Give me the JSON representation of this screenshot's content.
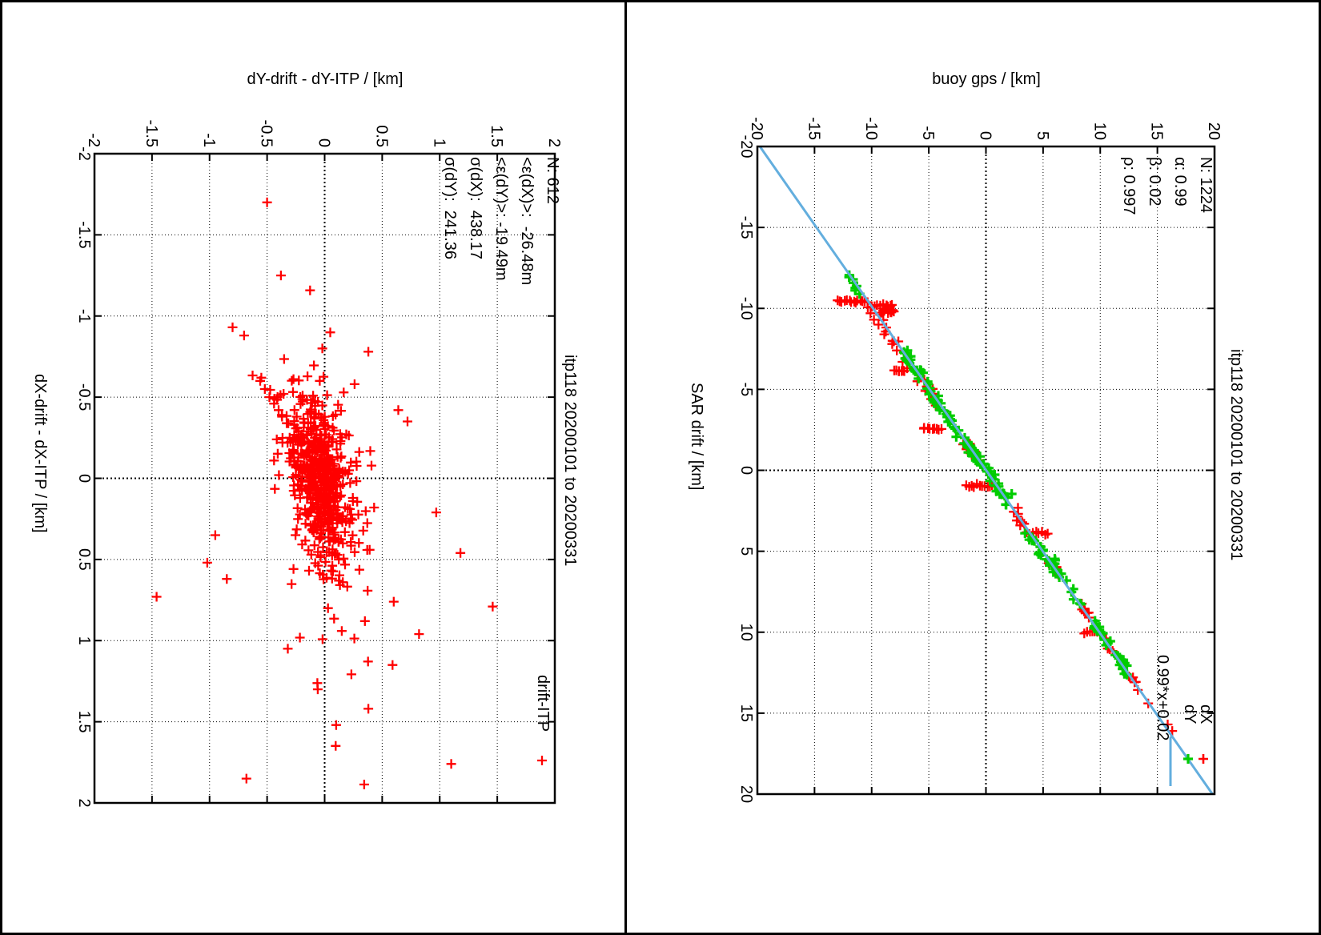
{
  "panels": {
    "left": {
      "title": "itp118 20200101 to 20200331",
      "axis_top_label": "dY-drift - dY-ITP / [km]",
      "axis_side_label": "dX-drift - dX-ITP / [km]",
      "stats_lines": [
        "N: 612",
        "<ε(dX)>:  -26.48m",
        "<ε(dY)>: -19.49m",
        "σ(dX):  438.17",
        "σ(dY):  241.36"
      ],
      "legend": {
        "label": "drift-ITP"
      }
    },
    "right": {
      "title": "itp118 20200101 to 20200331",
      "axis_top_label": "buoy gps / [km]",
      "axis_side_label": "SAR drift / [km]",
      "stats_lines": [
        "N: 1224",
        "α: 0.99",
        "β: 0.02",
        "ρ: 0.997"
      ],
      "legend": {
        "dx_label": "dX",
        "dy_label": "dY",
        "fit_label": "0.99*x+0.02"
      }
    }
  },
  "colors": {
    "marker_red": "#ff0000",
    "marker_green": "#00cc00",
    "fit_line": "#63aede",
    "grid": "#000000",
    "frame": "#000000",
    "background": "#ffffff"
  },
  "chart_data": [
    {
      "type": "scatter",
      "orientation": "rotated-90cw",
      "title": "itp118 20200101 to 20200331",
      "xlabel": "dX-drift - dX-ITP / [km]",
      "ylabel": "dY-drift - dY-ITP / [km]",
      "xlim": [
        -2,
        2
      ],
      "ylim": [
        -2,
        2
      ],
      "xticks": [
        -2,
        -1.5,
        -1,
        -0.5,
        0,
        0.5,
        1,
        1.5,
        2
      ],
      "yticks": [
        -2,
        -1.5,
        -1,
        -0.5,
        0,
        0.5,
        1,
        1.5,
        2
      ],
      "xtick_labels": [
        "-2",
        "-1.5",
        "-1",
        "-0.5",
        "0",
        "0.5",
        "1",
        "1.5",
        "2"
      ],
      "ytick_labels": [
        "-2",
        "-1.5",
        "-1",
        "-0.5",
        "0",
        "0.5",
        "1",
        "1.5",
        "2"
      ],
      "grid": true,
      "legend_position": "bottom-right",
      "stats": {
        "N": 612,
        "mean_eps_dX_m": -26.48,
        "mean_eps_dY_m": -19.49,
        "sigma_dX_m": 438.17,
        "sigma_dY_m": 241.36
      },
      "series": [
        {
          "name": "drift-ITP",
          "marker": "plus",
          "color": "#ff0000",
          "points": [
            [
              -1.7,
              -0.5
            ],
            [
              -1.25,
              -0.38
            ],
            [
              -0.93,
              -0.8
            ],
            [
              -0.88,
              -0.7
            ],
            [
              -0.8,
              -0.02
            ],
            [
              -0.78,
              0.38
            ],
            [
              -0.62,
              -0.55
            ],
            [
              -0.58,
              0.26
            ],
            [
              0.73,
              -1.46
            ],
            [
              0.52,
              -1.02
            ],
            [
              1.85,
              -0.68
            ],
            [
              1.76,
              1.1
            ],
            [
              1.52,
              0.1
            ],
            [
              1.15,
              0.59
            ],
            [
              0.96,
              0.82
            ],
            [
              0.79,
              1.46
            ],
            [
              0.46,
              1.18
            ],
            [
              0.21,
              0.97
            ],
            [
              1.3,
              -0.06
            ],
            [
              1.05,
              -0.32
            ],
            [
              0.62,
              -0.85
            ],
            [
              0.35,
              -0.95
            ],
            [
              -0.42,
              0.64
            ],
            [
              -0.35,
              0.72
            ],
            [
              0.88,
              0.35
            ],
            [
              1.42,
              0.38
            ],
            [
              -0.6,
              -0.56
            ],
            [
              -0.55,
              -0.52
            ],
            [
              -0.5,
              -0.48
            ],
            [
              -0.46,
              -0.44
            ],
            [
              -0.42,
              -0.4
            ],
            [
              -0.38,
              -0.37
            ],
            [
              -0.34,
              -0.33
            ]
          ],
          "clusters": [
            {
              "count": 400,
              "cx": 0.02,
              "cy": -0.03,
              "sx": 0.3,
              "sy": 0.16,
              "corr": 0.4
            },
            {
              "count": 120,
              "cx": 0.0,
              "cy": -0.04,
              "sx": 0.14,
              "sy": 0.09,
              "corr": 0.3
            },
            {
              "count": 80,
              "cx": 0.08,
              "cy": -0.02,
              "sx": 0.55,
              "sy": 0.28,
              "corr": 0.5
            }
          ]
        }
      ]
    },
    {
      "type": "scatter",
      "orientation": "rotated-90cw",
      "title": "itp118 20200101 to 20200331",
      "xlabel": "SAR drift / [km]",
      "ylabel": "buoy gps / [km]",
      "xlim": [
        -20,
        20
      ],
      "ylim": [
        -20,
        20
      ],
      "xticks": [
        -20,
        -15,
        -10,
        -5,
        0,
        5,
        10,
        15,
        20
      ],
      "yticks": [
        -20,
        -15,
        -10,
        -5,
        0,
        5,
        10,
        15,
        20
      ],
      "xtick_labels": [
        "-20",
        "-15",
        "-10",
        "-5",
        "0",
        "5",
        "10",
        "15",
        "20"
      ],
      "ytick_labels": [
        "-20",
        "-15",
        "-10",
        "-5",
        "0",
        "5",
        "10",
        "15",
        "20"
      ],
      "grid": true,
      "legend_position": "bottom-right",
      "stats": {
        "N": 1224,
        "alpha": 0.99,
        "beta": 0.02,
        "rho": 0.997
      },
      "fit": {
        "label": "0.99*x+0.02",
        "slope": 0.99,
        "intercept": 0.02,
        "color": "#63aede"
      },
      "series": [
        {
          "name": "dX",
          "marker": "plus",
          "color": "#ff0000",
          "points": [
            [
              -9.7,
              -10.1
            ],
            [
              -9.3,
              -9.8
            ],
            [
              -9.0,
              -9.4
            ],
            [
              -8.4,
              -8.9
            ],
            [
              -7.8,
              -8.2
            ],
            [
              -7.4,
              -7.8
            ],
            [
              -6.7,
              -7.3
            ],
            [
              -6.3,
              -6.9
            ],
            [
              -5.5,
              -6.0
            ],
            [
              -4.9,
              -5.3
            ],
            [
              -4.4,
              -4.8
            ],
            [
              -4.0,
              -4.4
            ],
            [
              -1.6,
              -2.0
            ],
            [
              -1.3,
              -1.7
            ],
            [
              3.1,
              2.7
            ],
            [
              3.4,
              3.0
            ],
            [
              5.6,
              5.5
            ],
            [
              5.9,
              5.9
            ],
            [
              6.2,
              6.2
            ],
            [
              8.6,
              8.4
            ],
            [
              8.8,
              8.7
            ],
            [
              9.1,
              9.0
            ],
            [
              12.8,
              12.6
            ],
            [
              13.1,
              13.0
            ],
            [
              14.4,
              14.2
            ],
            [
              15.7,
              15.9
            ],
            [
              16.1,
              16.3
            ]
          ],
          "strips": [
            {
              "sar": -10.45,
              "b0": -13.0,
              "b1": -10.4,
              "n": 14
            },
            {
              "sar": -10.15,
              "b0": -10.3,
              "b1": -8.3,
              "n": 9
            },
            {
              "sar": -6.15,
              "b0": -8.0,
              "b1": -7.1,
              "n": 7
            },
            {
              "sar": -2.6,
              "b0": -5.5,
              "b1": -3.9,
              "n": 9
            },
            {
              "sar": 0.95,
              "b0": -1.7,
              "b1": 0.55,
              "n": 11
            },
            {
              "sar": 3.9,
              "b0": 3.55,
              "b1": 5.45,
              "n": 8
            },
            {
              "sar": 10.0,
              "b0": 8.6,
              "b1": 10.0,
              "n": 7
            }
          ],
          "blocks": [
            {
              "sar0": -10.2,
              "sar1": -9.7,
              "b0": -9.2,
              "b1": -8.0,
              "n": 14
            }
          ],
          "segments": [
            [
              -9.8,
              -7.2,
              8
            ],
            [
              -5.6,
              -3.9,
              7
            ],
            [
              -1.7,
              -0.6,
              5
            ],
            [
              2.4,
              3.5,
              6
            ],
            [
              5.4,
              6.4,
              5
            ],
            [
              8.3,
              9.2,
              6
            ],
            [
              10.4,
              11.2,
              4
            ],
            [
              12.5,
              13.3,
              4
            ]
          ]
        },
        {
          "name": "dY",
          "marker": "plus",
          "color": "#00cc00",
          "points": [],
          "strips": [],
          "blocks": [],
          "segments": [
            [
              -12.1,
              -10.9,
              8
            ],
            [
              -7.3,
              -5.8,
              22
            ],
            [
              -5.4,
              -4.2,
              10
            ],
            [
              -4.3,
              -2.8,
              12
            ],
            [
              -3.3,
              -0.5,
              26
            ],
            [
              -0.6,
              2.1,
              26
            ],
            [
              3.9,
              5.9,
              16
            ],
            [
              5.4,
              7.0,
              12
            ],
            [
              7.5,
              8.2,
              5
            ],
            [
              9.2,
              10.6,
              14
            ],
            [
              11.3,
              12.6,
              16
            ]
          ]
        }
      ]
    }
  ]
}
